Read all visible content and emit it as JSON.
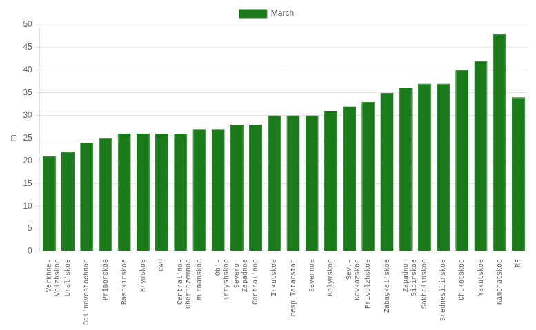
{
  "chart_data": {
    "type": "bar",
    "categories": [
      "Verkhne-\nVolzhskoe",
      "Ural'skoe",
      "Dal'nevostochnoe",
      "Primorskoe",
      "Bashkirskoe",
      "Krymskoe",
      "CAO",
      "Central'no-\nChernozemnoe",
      "Murmanskoe",
      "Ob'-\nIrtyshskoe",
      "Severo-\nZapadnoe",
      "Central'noe",
      "Irkutskoe",
      "resp.Tatarstan",
      "Severnoe",
      "Kolymskoe",
      "Sev.-\nKavkazskoe",
      "Privolzhskoe",
      "Zabaykal'skoe",
      "Zapadno-\nSibirskoe",
      "Sakhalinskoe",
      "Srednesibirskoe",
      "Chukotskoe",
      "Yakutskoe",
      "Kamchatskoe",
      "RF"
    ],
    "series": [
      {
        "name": "March",
        "color": "#1a7a1a",
        "values": [
          21,
          22,
          24,
          25,
          26,
          26,
          26,
          26,
          27,
          27,
          28,
          28,
          30,
          30,
          30,
          31,
          32,
          33,
          35,
          36,
          37,
          37,
          40,
          42,
          48,
          34
        ]
      }
    ],
    "ylabel": "m",
    "ylim": [
      0,
      50
    ],
    "yticks": [
      0,
      5,
      10,
      15,
      20,
      25,
      30,
      35,
      40,
      45,
      50
    ],
    "grid": true,
    "legend": "top"
  }
}
